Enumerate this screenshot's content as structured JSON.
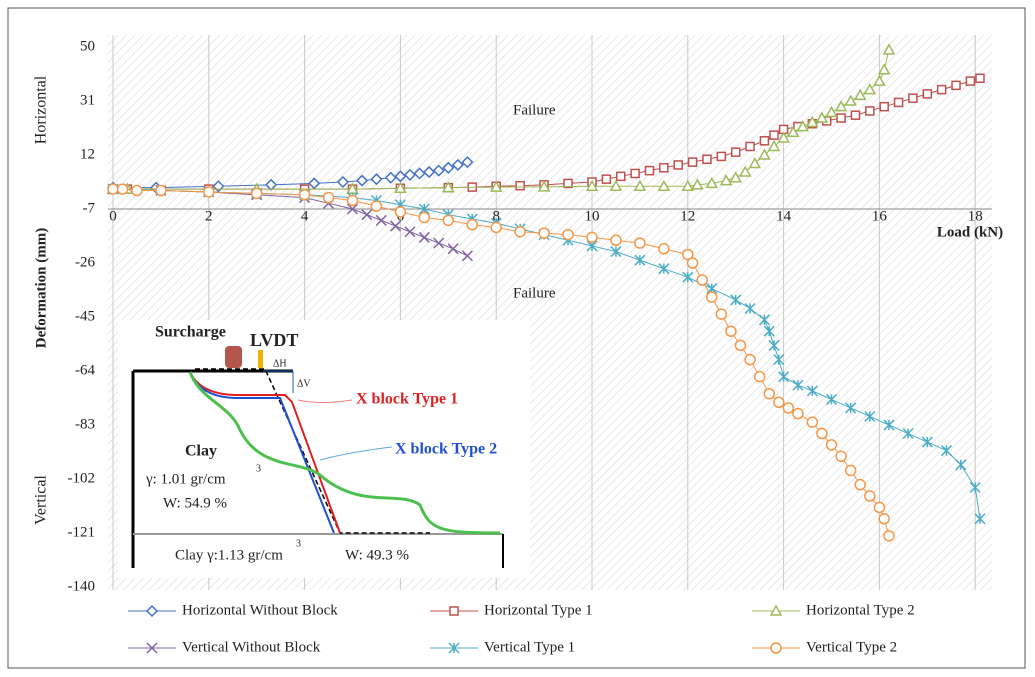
{
  "chart_data": {
    "type": "line",
    "x_label": "Load (kN)",
    "y_label": "Deformation (mm)",
    "y_top_label": "Horizontal",
    "y_bottom_label": "Vertical",
    "annotations": [
      "Failure",
      "Failure"
    ],
    "xlim": [
      0,
      18.3
    ],
    "xticks": [
      0,
      2,
      4,
      6,
      8,
      10,
      12,
      14,
      16,
      18
    ],
    "ylim": [
      -140,
      50
    ],
    "yticks": [
      50,
      31,
      12,
      -7,
      -26,
      -45,
      -64,
      -83,
      -102,
      -121,
      -140
    ],
    "x_axis_crossing": -7,
    "grid": "x",
    "legend": "bottom",
    "series": [
      {
        "name": "Horizontal Without Block",
        "color": "#4472c4",
        "marker": "diamond",
        "x": [
          0,
          0.9,
          2.2,
          3.3,
          4.2,
          4.8,
          5.2,
          5.5,
          5.8,
          6.0,
          6.2,
          6.4,
          6.6,
          6.8,
          7.0,
          7.2,
          7.4
        ],
        "values": [
          0.5,
          0.5,
          1,
          1.5,
          2,
          2.5,
          3,
          3.5,
          4,
          4.5,
          5,
          5.5,
          6,
          6.5,
          7.5,
          8.5,
          9.5
        ]
      },
      {
        "name": "Horizontal Type 1",
        "color": "#c0504d",
        "marker": "square",
        "x": [
          0,
          0.3,
          2,
          4,
          5,
          6,
          7,
          7.5,
          8,
          8.5,
          9,
          9.5,
          10,
          10.3,
          10.6,
          10.9,
          11.2,
          11.5,
          11.8,
          12.1,
          12.4,
          12.7,
          13,
          13.3,
          13.6,
          13.8,
          14,
          14.3,
          14.6,
          14.9,
          15.2,
          15.5,
          15.8,
          16.1,
          16.4,
          16.7,
          17,
          17.3,
          17.6,
          17.9,
          18.1
        ],
        "values": [
          0,
          0,
          0,
          0,
          0,
          0.3,
          0.5,
          0.7,
          1,
          1.2,
          1.5,
          2,
          2.5,
          3.5,
          4.5,
          5.5,
          6.5,
          7.5,
          8.5,
          9.5,
          10.5,
          11.5,
          13,
          15,
          17,
          19,
          21,
          22,
          23,
          24,
          25,
          26,
          27.5,
          29,
          30.5,
          32,
          33.5,
          35,
          36.5,
          38,
          39
        ]
      },
      {
        "name": "Horizontal Type 2",
        "color": "#9bbb59",
        "marker": "triangle",
        "x": [
          0,
          0.3,
          3,
          5,
          6,
          7,
          8,
          9,
          10,
          10.5,
          11,
          11.5,
          12,
          12.2,
          12.5,
          12.8,
          13,
          13.2,
          13.4,
          13.6,
          13.8,
          14,
          14.2,
          14.4,
          14.6,
          14.8,
          15,
          15.2,
          15.4,
          15.6,
          15.8,
          16,
          16.1,
          16.2
        ],
        "values": [
          0,
          0,
          0,
          0,
          0.3,
          0.5,
          0.7,
          0.8,
          1,
          1,
          1,
          1,
          1,
          1.5,
          2,
          3,
          4,
          6,
          9,
          12,
          15,
          18,
          20,
          22,
          23.5,
          25,
          27,
          29,
          31,
          33,
          35,
          38,
          42,
          49
        ]
      },
      {
        "name": "Vertical Without Block",
        "color": "#8064a2",
        "marker": "x",
        "x": [
          0,
          1,
          2,
          3,
          4,
          4.5,
          5,
          5.3,
          5.6,
          5.9,
          6.2,
          6.5,
          6.8,
          7.1,
          7.4
        ],
        "values": [
          0,
          -0.5,
          -1,
          -2,
          -3,
          -5,
          -7,
          -9,
          -11,
          -13,
          -15,
          -17,
          -19,
          -21,
          -23.5
        ]
      },
      {
        "name": "Vertical Type 1",
        "color": "#4bacc6",
        "marker": "star",
        "x": [
          0,
          2,
          3,
          4,
          5,
          5.5,
          6,
          6.5,
          7,
          7.5,
          8,
          8.5,
          9,
          9.5,
          10,
          10.5,
          11,
          11.5,
          12,
          12.5,
          13,
          13.3,
          13.6,
          13.7,
          13.8,
          13.9,
          14,
          14.3,
          14.6,
          15,
          15.4,
          15.8,
          16.2,
          16.6,
          17,
          17.4,
          17.7,
          18,
          18.1
        ],
        "values": [
          0,
          -1,
          -1.5,
          -2,
          -3,
          -4,
          -5.5,
          -7,
          -9,
          -10.5,
          -12,
          -14,
          -16,
          -18,
          -20,
          -22,
          -25,
          -28,
          -31,
          -35,
          -39,
          -42,
          -46,
          -50,
          -55,
          -60,
          -66,
          -69,
          -71,
          -74,
          -77,
          -80,
          -83,
          -86,
          -89,
          -92,
          -97,
          -105,
          -116
        ]
      },
      {
        "name": "Vertical Type 2",
        "color": "#f79646",
        "marker": "circle",
        "x": [
          0,
          0.2,
          0.5,
          1,
          2,
          3,
          4,
          4.5,
          5,
          5.5,
          6,
          6.5,
          7,
          7.5,
          8,
          8.5,
          9,
          9.5,
          10,
          10.5,
          11,
          11.5,
          12,
          12.1,
          12.3,
          12.5,
          12.7,
          12.9,
          13.1,
          13.3,
          13.5,
          13.7,
          13.9,
          14.1,
          14.3,
          14.6,
          14.8,
          15,
          15.2,
          15.4,
          15.6,
          15.8,
          16,
          16.1,
          16.2
        ],
        "values": [
          0,
          0,
          -0.5,
          -0.5,
          -1,
          -1.5,
          -2,
          -3,
          -4,
          -6,
          -8,
          -10,
          -11,
          -12.5,
          -13.5,
          -15,
          -15.5,
          -16,
          -17,
          -18,
          -19,
          -21,
          -23,
          -26,
          -32,
          -38,
          -44,
          -50,
          -55,
          -60,
          -66,
          -72,
          -75,
          -77,
          -79,
          -82,
          -86,
          -90,
          -94,
          -99,
          -104,
          -108,
          -112,
          -116,
          -122
        ]
      }
    ]
  },
  "inset": {
    "surcharge": "Surcharge",
    "lvdt": "LVDT",
    "delta_h": "ΔH",
    "delta_v": "ΔV",
    "type1": "X block Type 1",
    "type2": "X block Type 2",
    "upper_clay": {
      "name": "Clay",
      "gamma": "γ: 1.01 gr/cm",
      "exponent": "3",
      "water": "W: 54.9 %"
    },
    "lower_clay": {
      "gamma": "Clay  γ:1.13 gr/cm",
      "exponent": "3",
      "water": "W: 49.3 %"
    }
  }
}
